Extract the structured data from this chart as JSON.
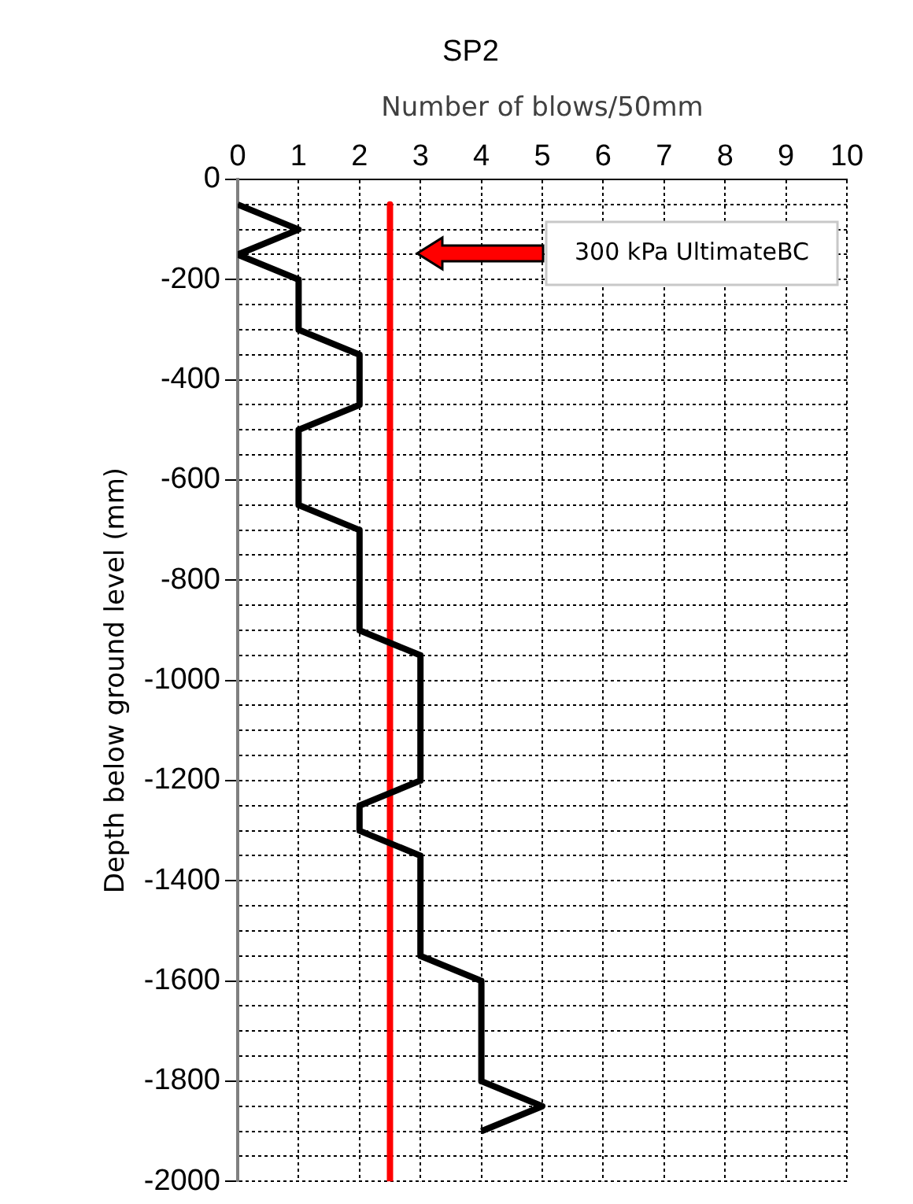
{
  "chart_data": {
    "type": "line",
    "title": "SP2",
    "xlabel": "Number of blows/50mm",
    "ylabel": "Depth below ground level (mm)",
    "series": [
      {
        "type": "line",
        "color": "#000000",
        "x": [
          0,
          1,
          0,
          1,
          1,
          2,
          2,
          1,
          1,
          2,
          2,
          3,
          3,
          2,
          2,
          3,
          3,
          4,
          4,
          5,
          4
        ],
        "values": [
          -50,
          -100,
          -150,
          -200,
          -300,
          -350,
          -450,
          -500,
          -650,
          -700,
          -900,
          -950,
          -1200,
          -1250,
          -1300,
          -1350,
          -1550,
          -1600,
          -1800,
          -1850,
          -1900
        ]
      },
      {
        "type": "line",
        "color": "#ff0000",
        "x": [
          2.5,
          2.5
        ],
        "values": [
          -50,
          -2000
        ]
      }
    ],
    "annotations": [
      "300 kPa UltimateBC"
    ],
    "xlim": [
      0,
      10
    ],
    "xticks": [
      0,
      1,
      2,
      3,
      4,
      5,
      6,
      7,
      8,
      9,
      10
    ],
    "ylim": [
      -2000,
      0
    ],
    "yticks": [
      0,
      {
        "value": -50,
        "label": null
      },
      {
        "value": -100,
        "label": null
      },
      {
        "value": -150,
        "label": null
      },
      -200,
      {
        "value": -250,
        "label": null
      },
      {
        "value": -300,
        "label": null
      },
      {
        "value": -350,
        "label": null
      },
      -400,
      {
        "value": -450,
        "label": null
      },
      {
        "value": -500,
        "label": null
      },
      {
        "value": -550,
        "label": null
      },
      -600,
      {
        "value": -650,
        "label": null
      },
      {
        "value": -700,
        "label": null
      },
      {
        "value": -750,
        "label": null
      },
      -800,
      {
        "value": -850,
        "label": null
      },
      {
        "value": -900,
        "label": null
      },
      {
        "value": -950,
        "label": null
      },
      -1000,
      {
        "value": -1050,
        "label": null
      },
      {
        "value": -1100,
        "label": null
      },
      {
        "value": -1150,
        "label": null
      },
      -1200,
      {
        "value": -1250,
        "label": null
      },
      {
        "value": -1300,
        "label": null
      },
      {
        "value": -1350,
        "label": null
      },
      -1400,
      {
        "value": -1450,
        "label": null
      },
      {
        "value": -1500,
        "label": null
      },
      {
        "value": -1550,
        "label": null
      },
      -1600,
      {
        "value": -1650,
        "label": null
      },
      {
        "value": -1700,
        "label": null
      },
      {
        "value": -1750,
        "label": null
      },
      -1800,
      {
        "value": -1850,
        "label": null
      },
      {
        "value": -1900,
        "label": null
      },
      {
        "value": -1950,
        "label": null
      },
      -2000
    ],
    "grid": true,
    "marker": "none",
    "line_style": "solid"
  }
}
